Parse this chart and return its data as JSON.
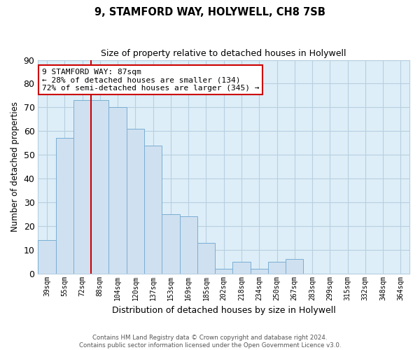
{
  "title": "9, STAMFORD WAY, HOLYWELL, CH8 7SB",
  "subtitle": "Size of property relative to detached houses in Holywell",
  "xlabel": "Distribution of detached houses by size in Holywell",
  "ylabel": "Number of detached properties",
  "bin_labels": [
    "39sqm",
    "55sqm",
    "72sqm",
    "88sqm",
    "104sqm",
    "120sqm",
    "137sqm",
    "153sqm",
    "169sqm",
    "185sqm",
    "202sqm",
    "218sqm",
    "234sqm",
    "250sqm",
    "267sqm",
    "283sqm",
    "299sqm",
    "315sqm",
    "332sqm",
    "348sqm",
    "364sqm"
  ],
  "bar_heights": [
    14,
    57,
    73,
    73,
    70,
    61,
    54,
    25,
    24,
    13,
    2,
    5,
    2,
    5,
    6,
    0,
    0,
    0,
    0,
    0,
    0
  ],
  "bar_color": "#cfe0f0",
  "bar_edge_color": "#7aaed4",
  "vline_x_index": 3,
  "vline_color": "#cc0000",
  "annotation_text": "9 STAMFORD WAY: 87sqm\n← 28% of detached houses are smaller (134)\n72% of semi-detached houses are larger (345) →",
  "annotation_box_edge": "#cc0000",
  "ylim": [
    0,
    90
  ],
  "yticks": [
    0,
    10,
    20,
    30,
    40,
    50,
    60,
    70,
    80,
    90
  ],
  "footer": "Contains HM Land Registry data © Crown copyright and database right 2024.\nContains public sector information licensed under the Open Government Licence v3.0.",
  "bg_color": "#ffffff",
  "plot_bg_color": "#ddeef8",
  "grid_color": "#b8cfe0"
}
